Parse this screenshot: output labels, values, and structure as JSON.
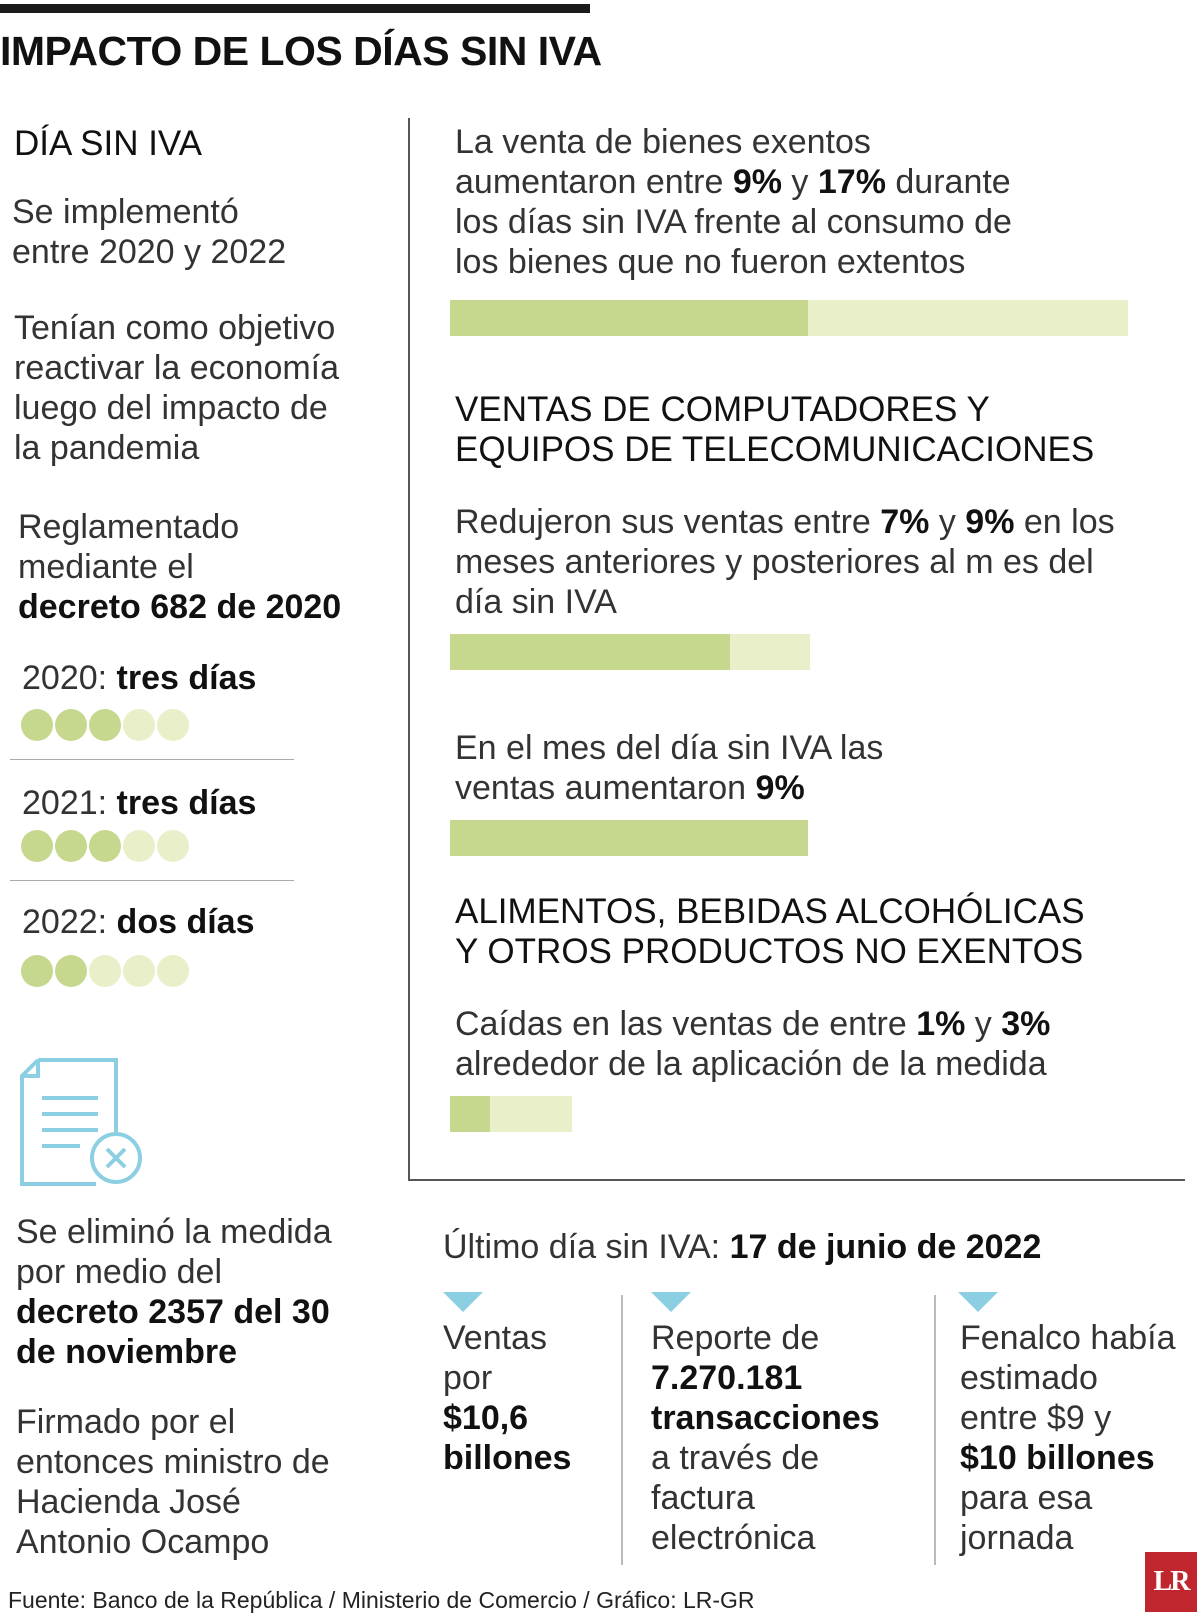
{
  "title": "IMPACTO DE LOS DÍAS SIN IVA",
  "left": {
    "heading": "DÍA SIN IVA",
    "implemented": [
      "Se implementó",
      "entre 2020 y 2022"
    ],
    "objective": [
      "Tenían como objetivo",
      "reactivar la economía",
      "luego del impacto de",
      "la pandemia"
    ],
    "regulated": {
      "line1": "Reglamentado",
      "line2": "mediante el",
      "bold": "decreto 682 de 2020"
    },
    "years": [
      {
        "year": "2020:",
        "days": "tres días",
        "filled": 3,
        "total": 5
      },
      {
        "year": "2021:",
        "days": "tres días",
        "filled": 3,
        "total": 5
      },
      {
        "year": "2022:",
        "days": "dos días",
        "filled": 2,
        "total": 5
      }
    ],
    "eliminated": {
      "line1": "Se eliminó la medida",
      "line2": "por medio del",
      "bold1": "decreto 2357 del 30",
      "bold2": "de noviembre"
    },
    "signed": [
      "Firmado por el",
      "entonces ministro de",
      "Hacienda José",
      "Antonio Ocampo"
    ]
  },
  "right": {
    "block1": {
      "l1": "La venta de bienes exentos",
      "l2a": "aumentaron entre ",
      "l2b": "9%",
      "l2c": " y ",
      "l2d": "17%",
      "l2e": " durante",
      "l3": "los días sin IVA frente al consumo de",
      "l4": "los bienes que no fueron extentos",
      "bar_low": 9,
      "bar_high": 17
    },
    "section2_title": [
      "VENTAS DE COMPUTADORES Y",
      "EQUIPOS DE TELECOMUNICACIONES"
    ],
    "block2": {
      "l1a": "Redujeron sus ventas entre ",
      "l1b": "7%",
      "l1c": " y ",
      "l1d": "9%",
      "l1e": " en los",
      "l2": "meses anteriores y posteriores al m es del",
      "l3": "día sin IVA",
      "bar_low": 7,
      "bar_high": 9
    },
    "block3": {
      "l1": "En el mes del día sin IVA las",
      "l2a": "ventas aumentaron ",
      "l2b": "9%",
      "bar_value": 9
    },
    "section3_title": [
      "ALIMENTOS, BEBIDAS ALCOHÓLICAS",
      "Y OTROS PRODUCTOS NO EXENTOS"
    ],
    "block4": {
      "l1a": "Caídas en las ventas de entre ",
      "l1b": "1%",
      "l1c": " y ",
      "l1d": "3%",
      "l2": "alrededor de la aplicación de la medida",
      "bar_low": 1,
      "bar_high": 3
    }
  },
  "bottom": {
    "last_day_label": "Último día sin IVA: ",
    "last_day_value": "17 de junio de 2022",
    "col1": {
      "l1": "Ventas",
      "l2": "por",
      "b1": "$10,6",
      "b2": "billones"
    },
    "col2": {
      "l1": "Reporte de",
      "b1": "7.270.181",
      "b2": "transacciones",
      "l2": "a través de",
      "l3": "factura",
      "l4": "electrónica"
    },
    "col3": {
      "l1": "Fenalco había",
      "l2": "estimado",
      "l3": "entre $9 y",
      "b1": "$10 billones",
      "l4": "para esa",
      "l5": "jornada"
    }
  },
  "logo": "LR",
  "source": "Fuente: Banco de la República / Ministerio de Comercio / Gráfico: LR-GR",
  "colors": {
    "bar_fill": "#c5d88d",
    "bar_light": "#e8efc9",
    "accent_blue": "#8ccfe3",
    "logo_red": "#c0262d"
  },
  "icons": [
    "document-x-icon",
    "triangle-down-icon"
  ]
}
